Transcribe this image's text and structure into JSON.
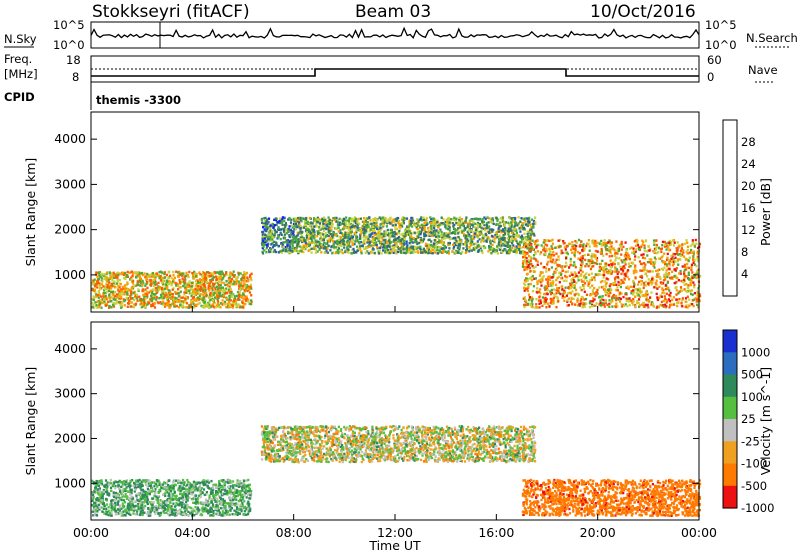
{
  "header": {
    "station": "Stokkseyri (fitACF)",
    "beam": "Beam 03",
    "date": "10/Oct/2016"
  },
  "left_labels": {
    "nsky": "N.Sky",
    "freq_line1": "Freq.",
    "freq_line2": "[MHz]",
    "cpid": "CPID"
  },
  "right_labels": {
    "nsearch": "N.Search",
    "nave": "Nave"
  },
  "noise_panel": {
    "tick_high": "10^5",
    "tick_low": "10^0",
    "right_high": "10^5",
    "right_low": "10^0"
  },
  "freq_panel": {
    "left_ticks": [
      "18",
      "8"
    ],
    "right_ticks": [
      "60",
      "0"
    ]
  },
  "cpid_panel": {
    "program": "themis -3300"
  },
  "x_axis": {
    "label": "Time UT",
    "ticks": [
      "00:00",
      "04:00",
      "08:00",
      "12:00",
      "16:00",
      "20:00",
      "00:00"
    ]
  },
  "power_panel": {
    "ylabel": "Slant Range [km]",
    "yticks": [
      "1000",
      "2000",
      "3000",
      "4000"
    ],
    "colorbar_label": "Power [dB]",
    "colorbar_ticks": [
      "4",
      "8",
      "12",
      "16",
      "20",
      "24",
      "28"
    ],
    "colors": [
      "#1a1aff",
      "#2b5ea8",
      "#3a7a5a",
      "#4aaa3a",
      "#c8d23a",
      "#ff9a00",
      "#ff5a00",
      "#ee1111"
    ]
  },
  "velocity_panel": {
    "ylabel": "Slant Range [km]",
    "yticks": [
      "1000",
      "2000",
      "3000",
      "4000"
    ],
    "colorbar_label": "Velocity [m s^-1]",
    "colorbar_ticks": [
      "1000",
      "500",
      "100",
      "25",
      "-25",
      "-100",
      "-500",
      "-1000"
    ],
    "colors": [
      "#1a2fd0",
      "#2b6ec0",
      "#2e8a5a",
      "#55c040",
      "#c0c0c0",
      "#f0a020",
      "#ff7a00",
      "#ee1111"
    ]
  },
  "chart_data": [
    {
      "type": "heatmap",
      "title": "Power",
      "xlabel": "Time UT",
      "ylabel": "Slant Range [km]",
      "xlim": [
        0,
        24
      ],
      "ylim": [
        180,
        4600
      ],
      "colorbar": {
        "label": "Power [dB]",
        "range": [
          0,
          30
        ],
        "ticks": [
          4,
          8,
          12,
          16,
          20,
          24,
          28
        ]
      },
      "regions": [
        {
          "t_start": 0.0,
          "t_end": 6.3,
          "range_low": 300,
          "range_high": 1100,
          "power_db_typical": 20
        },
        {
          "t_start": 6.7,
          "t_end": 8.0,
          "range_low": 1500,
          "range_high": 2300,
          "power_db_typical": 10
        },
        {
          "t_start": 8.0,
          "t_end": 17.5,
          "range_low": 1500,
          "range_high": 2300,
          "power_db_typical": 14
        },
        {
          "t_start": 17.0,
          "t_end": 24.0,
          "range_low": 300,
          "range_high": 1800,
          "power_db_typical": 22
        }
      ]
    },
    {
      "type": "heatmap",
      "title": "Velocity",
      "xlabel": "Time UT",
      "ylabel": "Slant Range [km]",
      "xlim": [
        0,
        24
      ],
      "ylim": [
        180,
        4600
      ],
      "colorbar": {
        "label": "Velocity [m s^-1]",
        "ticks": [
          1000,
          500,
          100,
          25,
          -25,
          -100,
          -500,
          -1000
        ]
      },
      "regions": [
        {
          "t_start": 0.0,
          "t_end": 6.3,
          "range_low": 300,
          "range_high": 1100,
          "velocity_typical": 100
        },
        {
          "t_start": 6.7,
          "t_end": 17.5,
          "range_low": 1500,
          "range_high": 2300,
          "velocity_typical": 0
        },
        {
          "t_start": 17.0,
          "t_end": 24.0,
          "range_low": 300,
          "range_high": 1100,
          "velocity_typical": -400
        }
      ]
    }
  ]
}
